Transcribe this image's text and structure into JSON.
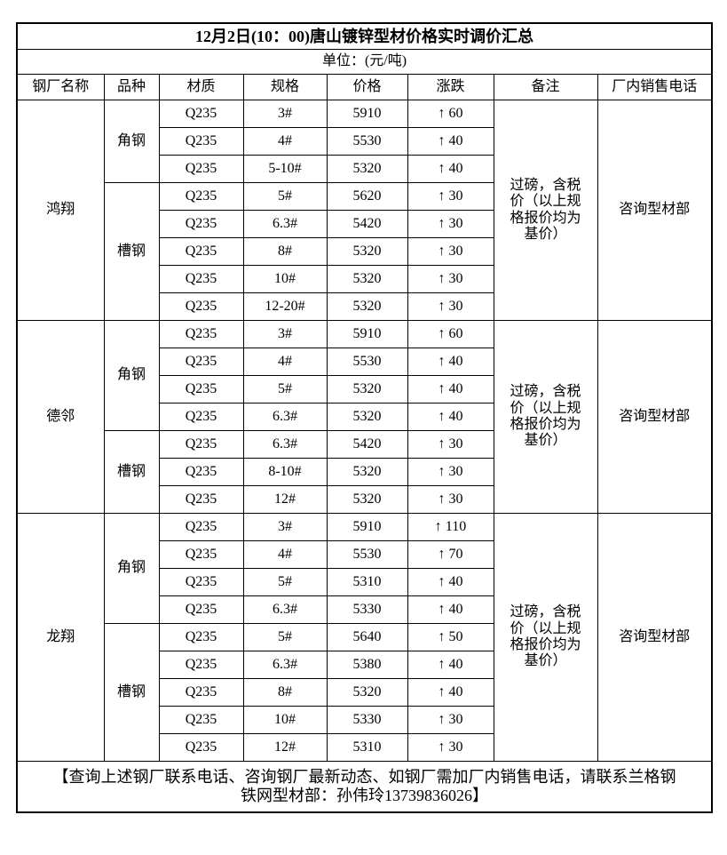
{
  "title": "12月2日(10：00)唐山镀锌型材价格实时调价汇总",
  "unit": "单位：(元/吨)",
  "columns": [
    "钢厂名称",
    "品种",
    "材质",
    "规格",
    "价格",
    "涨跌",
    "备注",
    "厂内销售电话"
  ],
  "mills": [
    {
      "name": "鸿翔",
      "note": "过磅，含税价（以上规格报价均为基价）",
      "phone": "咨询型材部",
      "categories": [
        {
          "name": "角钢",
          "rows": [
            {
              "material": "Q235",
              "spec": "3#",
              "price": "5910",
              "change_dir": "↑",
              "change": "60"
            },
            {
              "material": "Q235",
              "spec": "4#",
              "price": "5530",
              "change_dir": "↑",
              "change": "40"
            },
            {
              "material": "Q235",
              "spec": "5-10#",
              "price": "5320",
              "change_dir": "↑",
              "change": "40"
            }
          ]
        },
        {
          "name": "槽钢",
          "rows": [
            {
              "material": "Q235",
              "spec": "5#",
              "price": "5620",
              "change_dir": "↑",
              "change": "30"
            },
            {
              "material": "Q235",
              "spec": "6.3#",
              "price": "5420",
              "change_dir": "↑",
              "change": "30"
            },
            {
              "material": "Q235",
              "spec": "8#",
              "price": "5320",
              "change_dir": "↑",
              "change": "30"
            },
            {
              "material": "Q235",
              "spec": "10#",
              "price": "5320",
              "change_dir": "↑",
              "change": "30"
            },
            {
              "material": "Q235",
              "spec": "12-20#",
              "price": "5320",
              "change_dir": "↑",
              "change": "30"
            }
          ]
        }
      ]
    },
    {
      "name": "德邻",
      "note": "过磅，含税价（以上规格报价均为基价）",
      "phone": "咨询型材部",
      "categories": [
        {
          "name": "角钢",
          "rows": [
            {
              "material": "Q235",
              "spec": "3#",
              "price": "5910",
              "change_dir": "↑",
              "change": "60"
            },
            {
              "material": "Q235",
              "spec": "4#",
              "price": "5530",
              "change_dir": "↑",
              "change": "40"
            },
            {
              "material": "Q235",
              "spec": "5#",
              "price": "5320",
              "change_dir": "↑",
              "change": "40"
            },
            {
              "material": "Q235",
              "spec": "6.3#",
              "price": "5320",
              "change_dir": "↑",
              "change": "40"
            }
          ]
        },
        {
          "name": "槽钢",
          "rows": [
            {
              "material": "Q235",
              "spec": "6.3#",
              "price": "5420",
              "change_dir": "↑",
              "change": "30"
            },
            {
              "material": "Q235",
              "spec": "8-10#",
              "price": "5320",
              "change_dir": "↑",
              "change": "30"
            },
            {
              "material": "Q235",
              "spec": "12#",
              "price": "5320",
              "change_dir": "↑",
              "change": "30"
            }
          ]
        }
      ]
    },
    {
      "name": "龙翔",
      "note": "过磅，含税价（以上规格报价均为基价）",
      "phone": "咨询型材部",
      "categories": [
        {
          "name": "角钢",
          "rows": [
            {
              "material": "Q235",
              "spec": "3#",
              "price": "5910",
              "change_dir": "↑",
              "change": "110"
            },
            {
              "material": "Q235",
              "spec": "4#",
              "price": "5530",
              "change_dir": "↑",
              "change": "70"
            },
            {
              "material": "Q235",
              "spec": "5#",
              "price": "5310",
              "change_dir": "↑",
              "change": "40"
            },
            {
              "material": "Q235",
              "spec": "6.3#",
              "price": "5330",
              "change_dir": "↑",
              "change": "40"
            }
          ]
        },
        {
          "name": "槽钢",
          "rows": [
            {
              "material": "Q235",
              "spec": "5#",
              "price": "5640",
              "change_dir": "↑",
              "change": "50"
            },
            {
              "material": "Q235",
              "spec": "6.3#",
              "price": "5380",
              "change_dir": "↑",
              "change": "40"
            },
            {
              "material": "Q235",
              "spec": "8#",
              "price": "5320",
              "change_dir": "↑",
              "change": "40"
            },
            {
              "material": "Q235",
              "spec": "10#",
              "price": "5330",
              "change_dir": "↑",
              "change": "30"
            },
            {
              "material": "Q235",
              "spec": "12#",
              "price": "5310",
              "change_dir": "↑",
              "change": "30"
            }
          ]
        }
      ]
    }
  ],
  "footer": "【查询上述钢厂联系电话、咨询钢厂最新动态、如钢厂需加厂内销售电话，请联系兰格钢铁网型材部：孙伟玲13739836026】",
  "colors": {
    "border": "#000000",
    "text": "#000000",
    "background": "#ffffff"
  }
}
